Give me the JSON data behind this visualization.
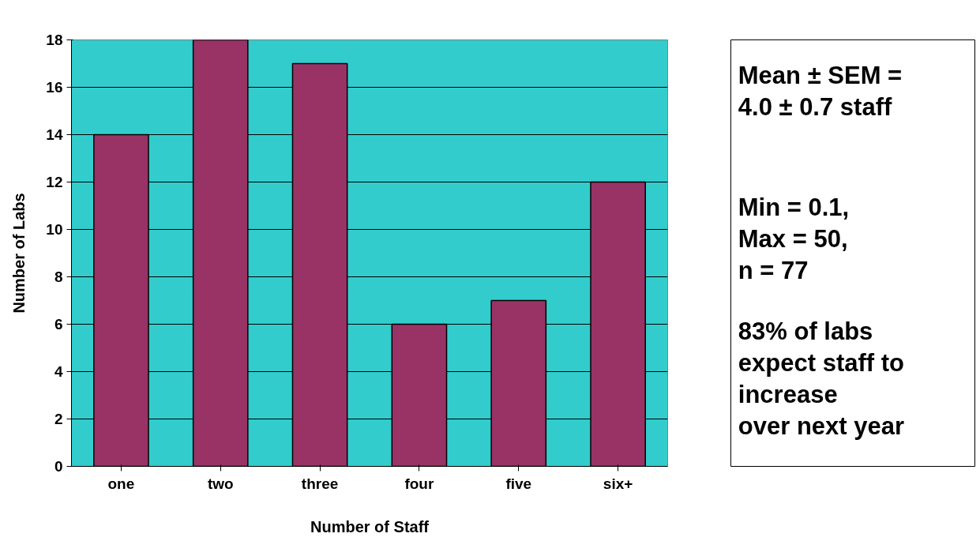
{
  "chart_data": {
    "type": "bar",
    "xlabel": "Number of Staff",
    "ylabel": "Number of Labs",
    "categories": [
      "one",
      "two",
      "three",
      "four",
      "five",
      "six+"
    ],
    "values": [
      14,
      18,
      17,
      6,
      7,
      12
    ],
    "color": "#993366",
    "ylim": [
      0,
      18
    ],
    "yticks": [
      0,
      2,
      4,
      6,
      8,
      10,
      12,
      14,
      16,
      18
    ],
    "grid": "y",
    "annotations": [
      "Mean ± SEM =\n4.0 ± 0.7 staff",
      "Min = 0.1,\nMax = 50,\nn = 77",
      "83% of labs\nexpect staff to\nincrease\nover next year"
    ]
  }
}
